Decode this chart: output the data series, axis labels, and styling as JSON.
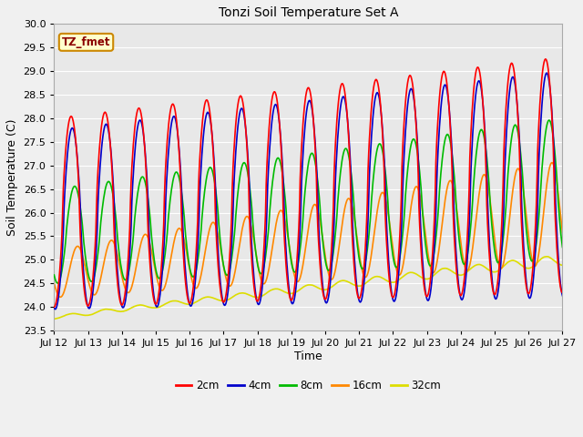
{
  "title": "Tonzi Soil Temperature Set A",
  "xlabel": "Time",
  "ylabel": "Soil Temperature (C)",
  "annotation": "TZ_fmet",
  "ylim": [
    23.5,
    30.0
  ],
  "xlim": [
    0,
    360
  ],
  "x_tick_labels": [
    "Jul 12",
    "Jul 13",
    "Jul 14",
    "Jul 15",
    "Jul 16",
    "Jul 17",
    "Jul 18",
    "Jul 19",
    "Jul 20",
    "Jul 21",
    "Jul 22",
    "Jul 23",
    "Jul 24",
    "Jul 25",
    "Jul 26",
    "Jul 27"
  ],
  "x_tick_positions": [
    0,
    24,
    48,
    72,
    96,
    120,
    144,
    168,
    192,
    216,
    240,
    264,
    288,
    312,
    336,
    360
  ],
  "y_ticks": [
    23.5,
    24.0,
    24.5,
    25.0,
    25.5,
    26.0,
    26.5,
    27.0,
    27.5,
    28.0,
    28.5,
    29.0,
    29.5,
    30.0
  ],
  "series_colors": [
    "#ff0000",
    "#0000cc",
    "#00bb00",
    "#ff8800",
    "#dddd00"
  ],
  "series_labels": [
    "2cm",
    "4cm",
    "8cm",
    "16cm",
    "32cm"
  ],
  "bg_color": "#e8e8e8",
  "grid_color": "#ffffff",
  "annotation_bg": "#ffffcc",
  "annotation_border": "#cc8800",
  "fig_bg": "#f0f0f0"
}
